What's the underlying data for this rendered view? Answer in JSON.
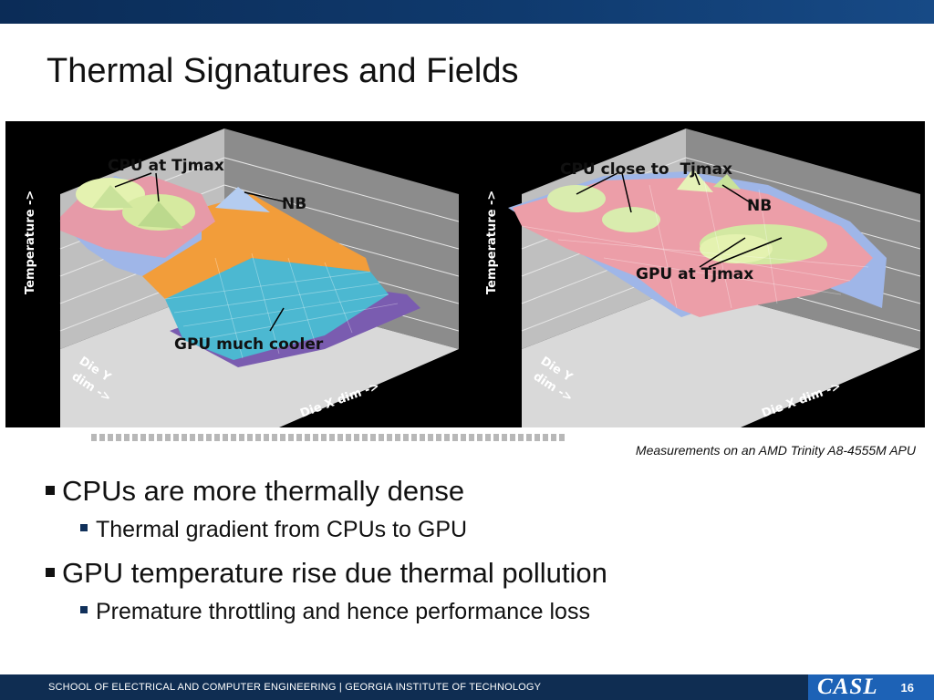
{
  "slide": {
    "title": "Thermal Signatures and Fields",
    "caption": "Measurements on an AMD Trinity A8-4555M APU",
    "bullets": [
      {
        "text": "CPUs are more thermally dense",
        "sub": [
          "Thermal gradient from CPUs to GPU"
        ]
      },
      {
        "text": "GPU temperature rise due thermal pollution",
        "sub": [
          "Premature throttling and hence performance loss"
        ]
      }
    ]
  },
  "figure": {
    "left": {
      "axis_z": "Temperature ->",
      "axis_y": [
        "Die Y",
        "dim ->"
      ],
      "axis_x": "Die X dim ->",
      "annotations": [
        "CPU at Tjmax",
        "NB",
        "GPU much cooler"
      ]
    },
    "right": {
      "axis_z": "Temperature ->",
      "axis_y": [
        "Die Y",
        "dim ->"
      ],
      "axis_x": "Die X dim ->",
      "annotations": [
        "CPU close to  Tjmax",
        "NB",
        "GPU at Tjmax"
      ]
    }
  },
  "footer": {
    "text": "SCHOOL OF ELECTRICAL AND COMPUTER ENGINEERING | GEORGIA INSTITUTE OF TECHNOLOGY",
    "logo": "CASL",
    "page": "16"
  },
  "colors": {
    "header": "#0f3a6e",
    "footer": "#0f2d52",
    "logo_bg": "#1d62b6"
  }
}
